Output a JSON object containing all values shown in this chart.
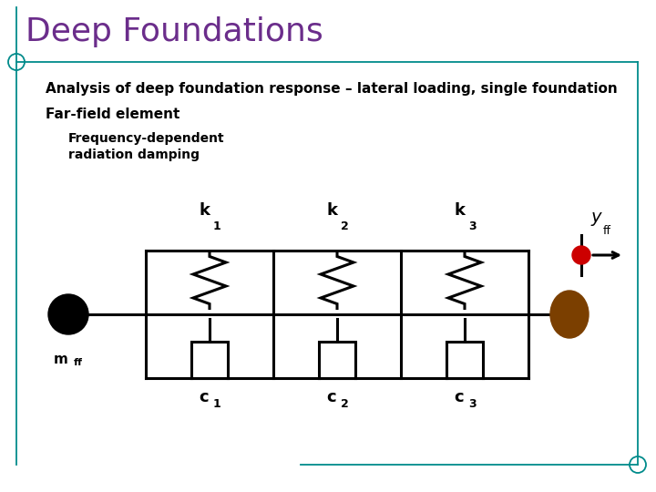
{
  "title": "Deep Foundations",
  "subtitle": "Analysis of deep foundation response – lateral loading, single foundation",
  "label3": "Far-field element",
  "freq_text": "Frequency-dependent\nradiation damping",
  "title_color": "#6B2D8B",
  "bg_color": "#FFFFFF",
  "border_color": "#008B8B",
  "mass_left_color": "#000000",
  "mass_right_color": "#7B3F00",
  "yff_dot_color": "#CC0000",
  "line_color": "#000000",
  "lw": 2.2,
  "border_lw": 1.3
}
